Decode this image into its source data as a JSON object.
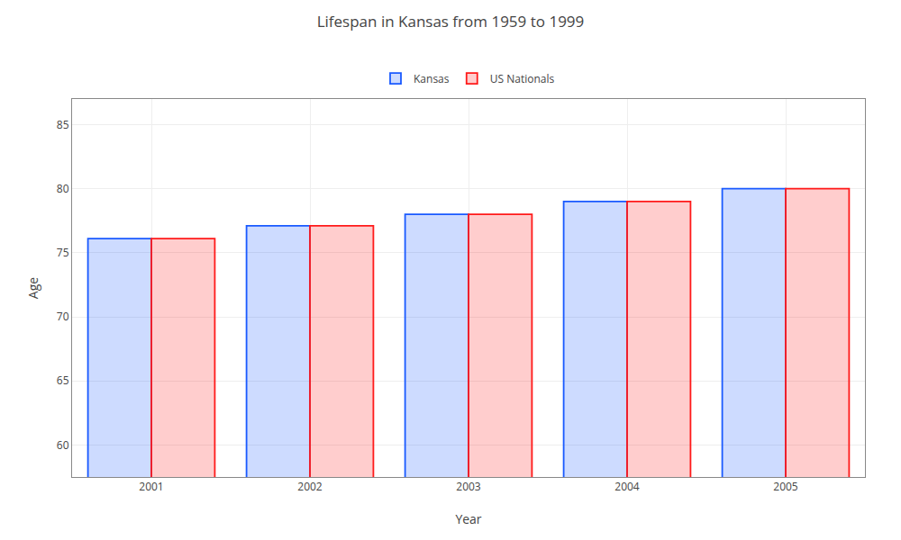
{
  "chart_data": {
    "type": "bar",
    "title": "Lifespan in Kansas from 1959 to 1999",
    "xlabel": "Year",
    "ylabel": "Age",
    "categories": [
      "2001",
      "2002",
      "2003",
      "2004",
      "2005"
    ],
    "series": [
      {
        "name": "Kansas",
        "color": "#1a5aff",
        "values": [
          76.1,
          77.1,
          78.0,
          79.0,
          80.0
        ]
      },
      {
        "name": "US Nationals",
        "color": "#ff1a1a",
        "values": [
          76.1,
          77.1,
          78.0,
          79.0,
          80.0
        ]
      }
    ],
    "ylim": [
      57.5,
      87
    ],
    "yticks": [
      60,
      65,
      70,
      75,
      80,
      85
    ],
    "grid": true,
    "legend": "top"
  }
}
